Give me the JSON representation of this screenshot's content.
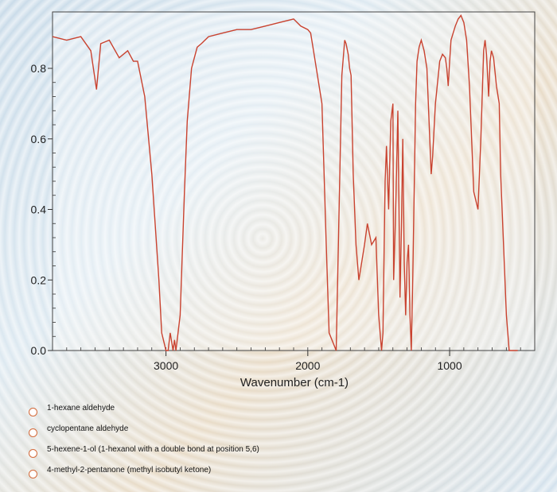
{
  "chart_data": {
    "type": "line",
    "title": "",
    "xlabel": "Wavenumber (cm-1)",
    "ylabel": "",
    "xlim": [
      3800,
      400
    ],
    "ylim": [
      0.0,
      0.96
    ],
    "x_ticks": [
      3000,
      2000,
      1000
    ],
    "x_tick_labels": [
      "3000",
      "2000",
      "1000"
    ],
    "y_ticks": [
      0.0,
      0.2,
      0.4,
      0.6,
      0.8
    ],
    "y_tick_labels": [
      "0.0",
      "0.2",
      "0.4",
      "0.6",
      "0.8"
    ],
    "grid": false,
    "line_color": "#c9422f",
    "series": [
      {
        "x": [
          3800,
          3700,
          3600,
          3530,
          3490,
          3460,
          3400,
          3330,
          3270,
          3230,
          3200,
          3150,
          3100,
          3050,
          3030,
          3000,
          2985,
          2970,
          2950,
          2940,
          2930,
          2900,
          2870,
          2850,
          2820,
          2780,
          2750,
          2700,
          2600,
          2500,
          2400,
          2300,
          2200,
          2100,
          2050,
          2000,
          1980,
          1960,
          1900,
          1870,
          1850,
          1800,
          1760,
          1740,
          1730,
          1715,
          1705,
          1695,
          1680,
          1660,
          1640,
          1600,
          1580,
          1550,
          1520,
          1500,
          1480,
          1470,
          1465,
          1455,
          1445,
          1430,
          1415,
          1400,
          1395,
          1380,
          1365,
          1350,
          1340,
          1330,
          1320,
          1310,
          1300,
          1290,
          1280,
          1270,
          1260,
          1250,
          1240,
          1230,
          1215,
          1200,
          1180,
          1160,
          1140,
          1130,
          1120,
          1100,
          1070,
          1050,
          1030,
          1020,
          1010,
          1000,
          990,
          975,
          960,
          940,
          920,
          910,
          900,
          880,
          860,
          830,
          800,
          780,
          760,
          750,
          740,
          725,
          715,
          705,
          690,
          670,
          650,
          640,
          620,
          600,
          580,
          560,
          540,
          520
        ],
        "y": [
          0.89,
          0.88,
          0.89,
          0.85,
          0.74,
          0.87,
          0.88,
          0.83,
          0.85,
          0.82,
          0.82,
          0.72,
          0.5,
          0.2,
          0.05,
          0.0,
          0.0,
          0.05,
          0.0,
          0.03,
          0.0,
          0.1,
          0.45,
          0.65,
          0.8,
          0.86,
          0.87,
          0.89,
          0.9,
          0.91,
          0.91,
          0.92,
          0.93,
          0.94,
          0.92,
          0.91,
          0.9,
          0.85,
          0.7,
          0.3,
          0.05,
          0.0,
          0.78,
          0.88,
          0.87,
          0.84,
          0.8,
          0.78,
          0.5,
          0.3,
          0.2,
          0.3,
          0.36,
          0.3,
          0.32,
          0.1,
          0.0,
          0.05,
          0.2,
          0.48,
          0.58,
          0.4,
          0.65,
          0.7,
          0.2,
          0.4,
          0.68,
          0.15,
          0.35,
          0.6,
          0.25,
          0.1,
          0.25,
          0.3,
          0.1,
          0.0,
          0.2,
          0.45,
          0.7,
          0.82,
          0.86,
          0.88,
          0.85,
          0.8,
          0.6,
          0.5,
          0.55,
          0.7,
          0.82,
          0.84,
          0.83,
          0.8,
          0.75,
          0.82,
          0.88,
          0.9,
          0.92,
          0.94,
          0.95,
          0.94,
          0.93,
          0.88,
          0.75,
          0.45,
          0.4,
          0.6,
          0.85,
          0.88,
          0.84,
          0.72,
          0.82,
          0.85,
          0.83,
          0.75,
          0.7,
          0.5,
          0.3,
          0.1,
          0.0,
          0.0,
          0.0,
          0.0
        ]
      }
    ]
  },
  "question": {
    "options": [
      "1-hexane aldehyde",
      "cyclopentane aldehyde",
      "5-hexene-1-ol (1-hexanol with a double bond at position 5,6)",
      "4-methyl-2-pentanone (methyl isobutyl ketone)"
    ]
  }
}
